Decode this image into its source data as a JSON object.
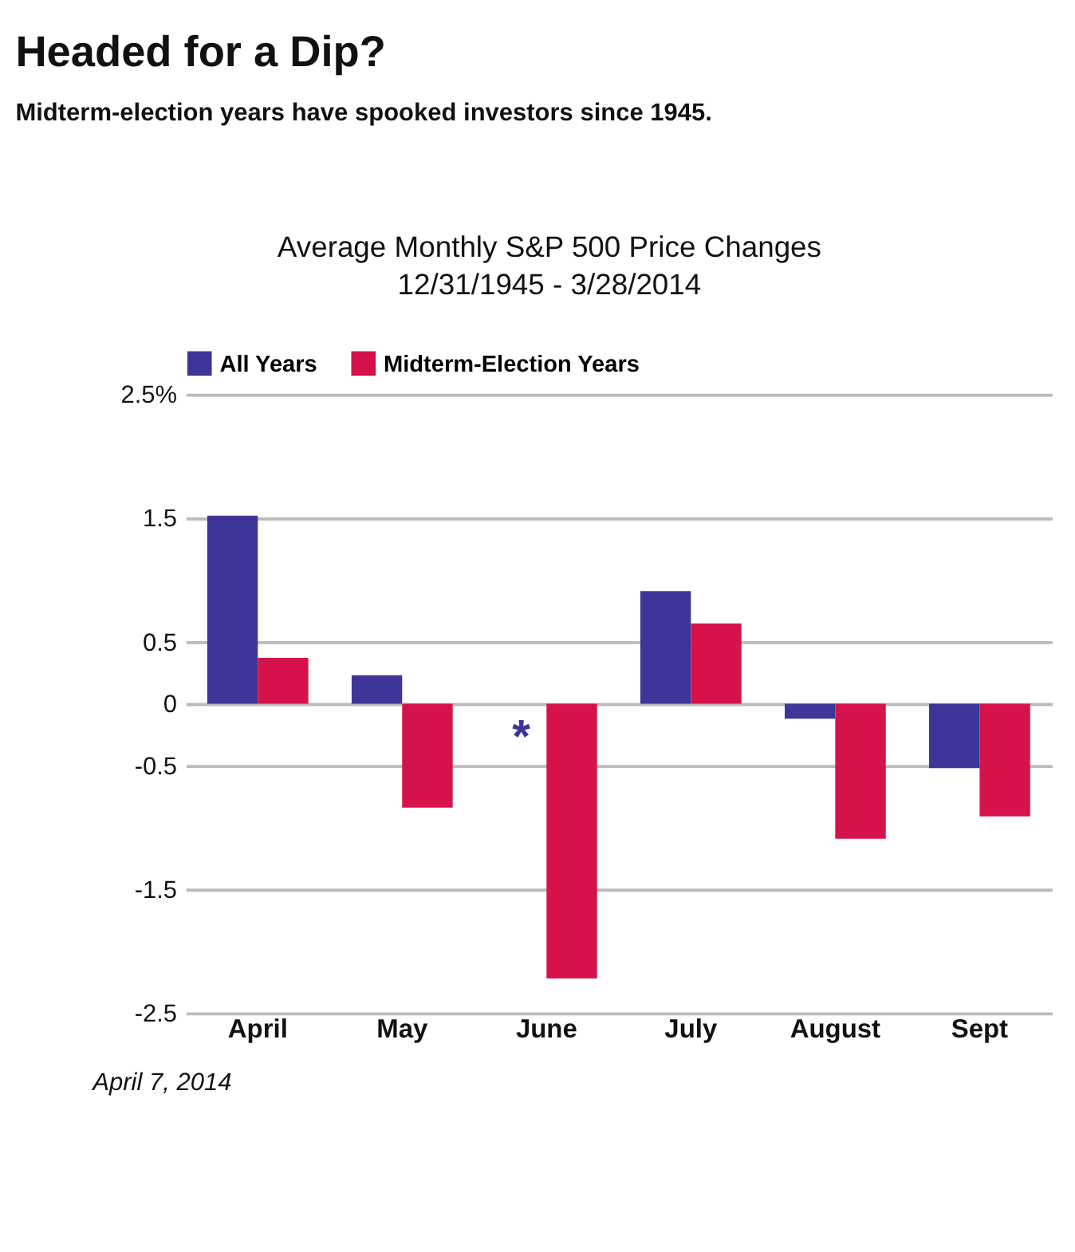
{
  "chart_data": {
    "type": "bar",
    "title": "Headed for a Dip?",
    "subtitle": "Midterm-election years have spooked investors since 1945.",
    "annotations": [
      "Average Monthly S&P 500 Price Changes",
      "12/31/1945 - 3/28/2014",
      {
        "text": "*",
        "x": "June",
        "y": -0.2
      },
      "April 7, 2014"
    ],
    "categories": [
      "April",
      "May",
      "June",
      "July",
      "August",
      "Sept"
    ],
    "series": [
      {
        "name": "All Years",
        "color": "#3d3597",
        "values": [
          1.52,
          0.23,
          null,
          0.91,
          -0.12,
          -0.52
        ]
      },
      {
        "name": "Midterm-Election Years",
        "color": "#d5124a",
        "values": [
          0.37,
          -0.84,
          -2.22,
          0.65,
          -1.09,
          -0.91
        ]
      }
    ],
    "ylim": [
      -2.5,
      2.5
    ],
    "yticks": [
      {
        "value": 2.5,
        "label": "2.5%"
      },
      1.5,
      0.5,
      0,
      -0.5,
      -1.5,
      -2.5
    ],
    "grid": "y",
    "legend": "top"
  }
}
